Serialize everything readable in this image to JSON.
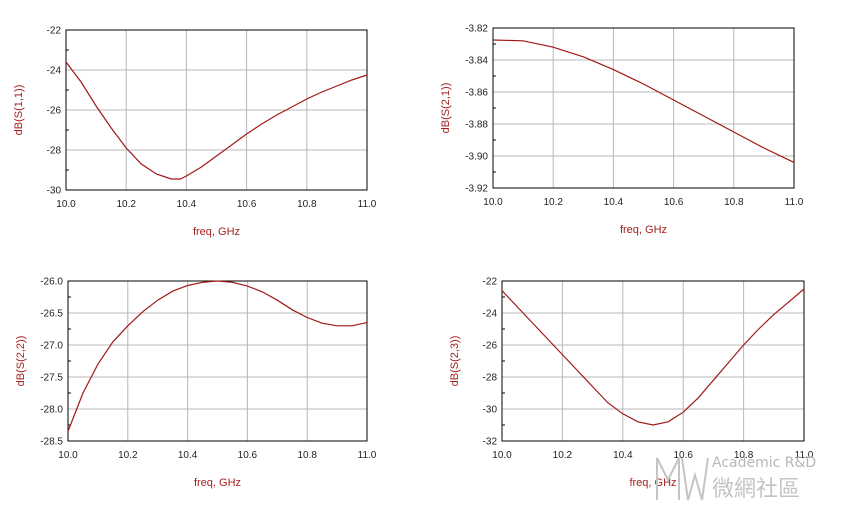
{
  "chart_data": [
    {
      "type": "line",
      "xlabel": "freq, GHz",
      "ylabel": "dB(S(1,1))",
      "xlim": [
        10.0,
        11.0
      ],
      "ylim": [
        -30,
        -22
      ],
      "xticks": [
        "10.0",
        "10.2",
        "10.4",
        "10.6",
        "10.8",
        "11.0"
      ],
      "yticks": [
        "-30",
        "-28",
        "-26",
        "-24",
        "-22"
      ],
      "xtick_values": [
        10.0,
        10.2,
        10.4,
        10.6,
        10.8,
        11.0
      ],
      "ytick_values": [
        -30,
        -28,
        -26,
        -24,
        -22
      ],
      "grid": true,
      "series": [
        {
          "color": "#a01818",
          "x": [
            10.0,
            10.05,
            10.1,
            10.15,
            10.2,
            10.25,
            10.3,
            10.35,
            10.38,
            10.4,
            10.45,
            10.5,
            10.55,
            10.6,
            10.65,
            10.7,
            10.75,
            10.8,
            10.85,
            10.9,
            10.95,
            11.0
          ],
          "y": [
            -23.6,
            -24.6,
            -25.8,
            -26.9,
            -27.9,
            -28.7,
            -29.2,
            -29.45,
            -29.45,
            -29.3,
            -28.85,
            -28.3,
            -27.75,
            -27.2,
            -26.7,
            -26.25,
            -25.85,
            -25.45,
            -25.1,
            -24.8,
            -24.5,
            -24.25
          ]
        }
      ]
    },
    {
      "type": "line",
      "xlabel": "freq, GHz",
      "ylabel": "dB(S(2,1))",
      "xlim": [
        10.0,
        11.0
      ],
      "ylim": [
        -3.92,
        -3.82
      ],
      "xticks": [
        "10.0",
        "10.2",
        "10.4",
        "10.6",
        "10.8",
        "11.0"
      ],
      "yticks": [
        "-3.92",
        "-3.90",
        "-3.88",
        "-3.86",
        "-3.84",
        "-3.82"
      ],
      "xtick_values": [
        10.0,
        10.2,
        10.4,
        10.6,
        10.8,
        11.0
      ],
      "ytick_values": [
        -3.92,
        -3.9,
        -3.88,
        -3.86,
        -3.84,
        -3.82
      ],
      "grid": true,
      "series": [
        {
          "color": "#a01818",
          "x": [
            10.0,
            10.1,
            10.2,
            10.3,
            10.4,
            10.5,
            10.6,
            10.7,
            10.8,
            10.9,
            11.0
          ],
          "y": [
            -3.8275,
            -3.828,
            -3.832,
            -3.838,
            -3.846,
            -3.855,
            -3.865,
            -3.875,
            -3.885,
            -3.895,
            -3.904
          ]
        }
      ]
    },
    {
      "type": "line",
      "xlabel": "freq, GHz",
      "ylabel": "dB(S(2,2))",
      "xlim": [
        10.0,
        11.0
      ],
      "ylim": [
        -28.5,
        -26.0
      ],
      "xticks": [
        "10.0",
        "10.2",
        "10.4",
        "10.6",
        "10.8",
        "11.0"
      ],
      "yticks": [
        "-28.5",
        "-28.0",
        "-27.5",
        "-27.0",
        "-26.5",
        "-26.0"
      ],
      "xtick_values": [
        10.0,
        10.2,
        10.4,
        10.6,
        10.8,
        11.0
      ],
      "ytick_values": [
        -28.5,
        -28.0,
        -27.5,
        -27.0,
        -26.5,
        -26.0
      ],
      "grid": true,
      "series": [
        {
          "color": "#a01818",
          "x": [
            10.0,
            10.05,
            10.1,
            10.15,
            10.2,
            10.25,
            10.3,
            10.35,
            10.4,
            10.45,
            10.5,
            10.55,
            10.6,
            10.65,
            10.7,
            10.75,
            10.8,
            10.85,
            10.9,
            10.95,
            11.0
          ],
          "y": [
            -28.35,
            -27.75,
            -27.3,
            -26.95,
            -26.7,
            -26.48,
            -26.3,
            -26.16,
            -26.07,
            -26.02,
            -26.0,
            -26.02,
            -26.08,
            -26.17,
            -26.3,
            -26.45,
            -26.57,
            -26.66,
            -26.7,
            -26.7,
            -26.65
          ]
        }
      ]
    },
    {
      "type": "line",
      "xlabel": "freq, GHz",
      "ylabel": "dB(S(2,3))",
      "xlim": [
        10.0,
        11.0
      ],
      "ylim": [
        -32,
        -22
      ],
      "xticks": [
        "10.0",
        "10.2",
        "10.4",
        "10.6",
        "10.8",
        "11.0"
      ],
      "yticks": [
        "-32",
        "-30",
        "-28",
        "-26",
        "-24",
        "-22"
      ],
      "xtick_values": [
        10.0,
        10.2,
        10.4,
        10.6,
        10.8,
        11.0
      ],
      "ytick_values": [
        -32,
        -30,
        -28,
        -26,
        -24,
        -22
      ],
      "grid": true,
      "series": [
        {
          "color": "#a01818",
          "x": [
            10.0,
            10.05,
            10.1,
            10.15,
            10.2,
            10.25,
            10.3,
            10.35,
            10.4,
            10.45,
            10.5,
            10.55,
            10.6,
            10.65,
            10.7,
            10.75,
            10.8,
            10.85,
            10.9,
            10.95,
            11.0
          ],
          "y": [
            -22.6,
            -23.6,
            -24.6,
            -25.6,
            -26.6,
            -27.6,
            -28.6,
            -29.6,
            -30.3,
            -30.8,
            -31.0,
            -30.8,
            -30.2,
            -29.3,
            -28.2,
            -27.1,
            -26.0,
            -25.0,
            -24.1,
            -23.3,
            -22.5
          ]
        }
      ]
    }
  ],
  "watermark": {
    "line1": "Academic R&D",
    "line2": "微網社區",
    "logo_icon": "mw-logo-icon"
  }
}
